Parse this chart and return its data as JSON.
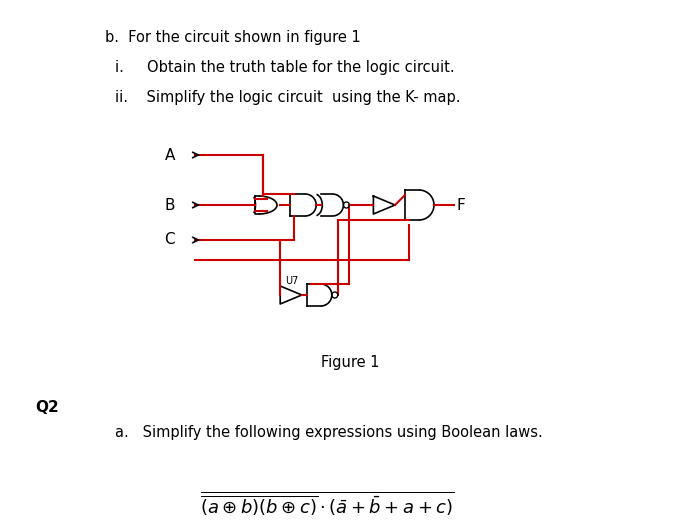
{
  "title_b": "b.  For the circuit shown in figure 1",
  "item_i": "i.     Obtain the truth table for the logic circuit.",
  "item_ii": "ii.    Simplify the logic circuit  using the K- map.",
  "figure_label": "Figure 1",
  "q2_label": "Q2",
  "q2a_text": "a.   Simplify the following expressions using Boolean laws.",
  "bg_color": "#ffffff",
  "text_color": "#000000",
  "wire_color": "#cc0000",
  "gate_color": "#000000"
}
